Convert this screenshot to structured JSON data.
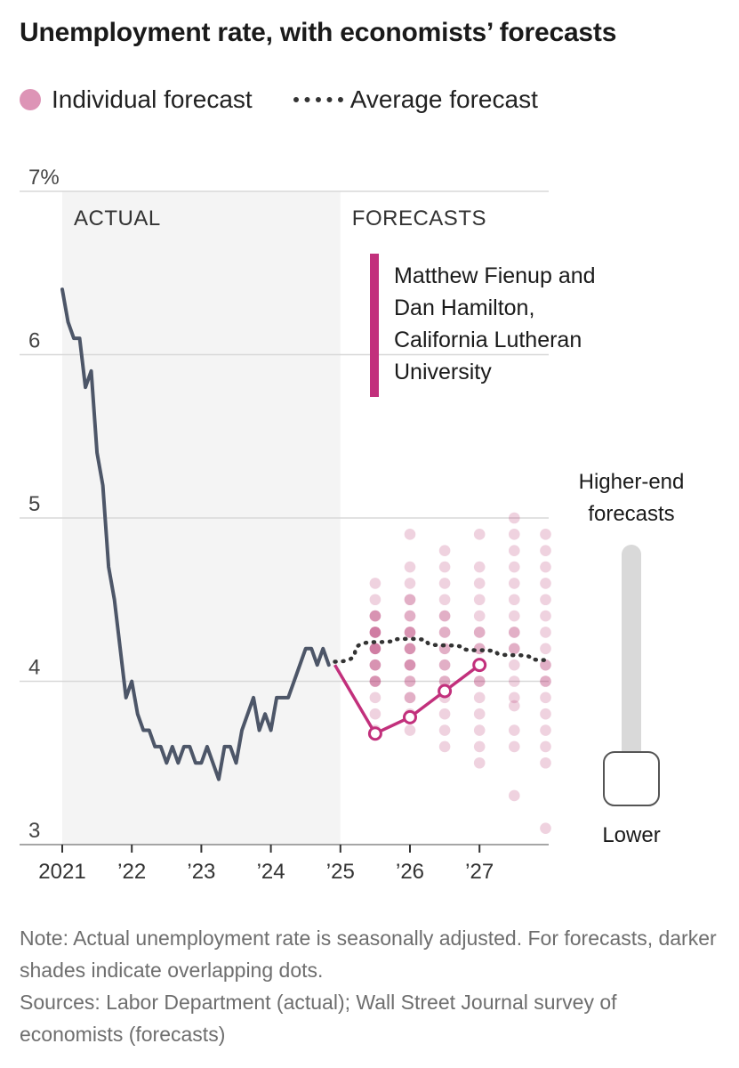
{
  "header": {
    "title": "Unemployment rate, with economists’ forecasts"
  },
  "legend": {
    "individual_label": "Individual forecast",
    "average_label": "Average forecast"
  },
  "colors": {
    "actual_line": "#4d5668",
    "highlight": "#c2307c",
    "forecast_dot": "#b5336e",
    "average_line": "#333333",
    "shade": "#f4f4f4",
    "grid": "#d8d8d8"
  },
  "chart_data": {
    "type": "line",
    "ylim": [
      3,
      7
    ],
    "xlim": [
      2021,
      2027.95
    ],
    "y_ticks": [
      {
        "value": 7,
        "label": "7%"
      },
      {
        "value": 6,
        "label": "6"
      },
      {
        "value": 5,
        "label": "5"
      },
      {
        "value": 4,
        "label": "4"
      },
      {
        "value": 3,
        "label": "3"
      }
    ],
    "x_ticks": [
      {
        "value": 2021,
        "label": "2021"
      },
      {
        "value": 2022,
        "label": "’22"
      },
      {
        "value": 2023,
        "label": "’23"
      },
      {
        "value": 2024,
        "label": "’24"
      },
      {
        "value": 2025,
        "label": "’25"
      },
      {
        "value": 2026,
        "label": "’26"
      },
      {
        "value": 2027,
        "label": "’27"
      }
    ],
    "regions": [
      {
        "label": "ACTUAL",
        "from": 2021,
        "to": 2025,
        "shaded": true
      },
      {
        "label": "FORECASTS",
        "from": 2025,
        "to": 2027.95,
        "shaded": false
      }
    ],
    "actual": {
      "start": 2021,
      "step_months": 1,
      "values": [
        6.4,
        6.2,
        6.1,
        6.1,
        5.8,
        5.9,
        5.4,
        5.2,
        4.7,
        4.5,
        4.2,
        3.9,
        4.0,
        3.8,
        3.7,
        3.7,
        3.6,
        3.6,
        3.5,
        3.6,
        3.5,
        3.6,
        3.6,
        3.5,
        3.5,
        3.6,
        3.5,
        3.4,
        3.6,
        3.6,
        3.5,
        3.7,
        3.8,
        3.9,
        3.7,
        3.8,
        3.7,
        3.9,
        3.9,
        3.9,
        4.0,
        4.1,
        4.2,
        4.2,
        4.1,
        4.2,
        4.1
      ]
    },
    "average_forecast": {
      "x": [
        2024.92,
        2025.5,
        2026.0,
        2026.5,
        2027.0,
        2027.5,
        2027.95
      ],
      "y": [
        4.12,
        4.24,
        4.26,
        4.22,
        4.19,
        4.16,
        4.13
      ]
    },
    "highlighted_forecast": {
      "label_lines": [
        "Matthew Fienup and",
        "Dan Hamilton,",
        "California Lutheran",
        "University"
      ],
      "x": [
        2024.92,
        2025.5,
        2026.0,
        2026.5,
        2027.0
      ],
      "y": [
        4.1,
        3.68,
        3.78,
        3.94,
        4.1
      ]
    },
    "forecast_dots": [
      {
        "x": 2025.5,
        "values": [
          3.9,
          4.0,
          4.0,
          4.0,
          4.1,
          4.1,
          4.1,
          4.2,
          4.2,
          4.2,
          4.2,
          4.3,
          4.3,
          4.3,
          4.3,
          4.4,
          4.4,
          4.4,
          4.5,
          4.6,
          3.7,
          3.8
        ]
      },
      {
        "x": 2026.0,
        "values": [
          3.7,
          3.8,
          3.9,
          3.9,
          4.0,
          4.0,
          4.1,
          4.1,
          4.1,
          4.2,
          4.2,
          4.2,
          4.3,
          4.3,
          4.3,
          4.4,
          4.4,
          4.5,
          4.5,
          4.6,
          4.7,
          4.9
        ]
      },
      {
        "x": 2026.5,
        "values": [
          3.6,
          3.7,
          3.8,
          3.9,
          4.0,
          4.0,
          4.1,
          4.1,
          4.2,
          4.2,
          4.3,
          4.3,
          4.4,
          4.4,
          4.5,
          4.6,
          4.7,
          4.8
        ]
      },
      {
        "x": 2027.0,
        "values": [
          3.5,
          3.6,
          3.7,
          3.8,
          3.9,
          4.0,
          4.0,
          4.1,
          4.1,
          4.2,
          4.2,
          4.3,
          4.3,
          4.4,
          4.5,
          4.6,
          4.7,
          4.9
        ]
      },
      {
        "x": 2027.5,
        "values": [
          3.3,
          3.6,
          3.7,
          3.85,
          3.9,
          4.0,
          4.1,
          4.2,
          4.2,
          4.3,
          4.3,
          4.4,
          4.5,
          4.6,
          4.7,
          4.8,
          4.9,
          5.0
        ]
      },
      {
        "x": 2027.95,
        "values": [
          3.1,
          3.5,
          3.6,
          3.7,
          3.8,
          3.9,
          4.0,
          4.0,
          4.1,
          4.1,
          4.2,
          4.3,
          4.4,
          4.5,
          4.6,
          4.7,
          4.8,
          4.9
        ]
      }
    ]
  },
  "slider": {
    "top_label_lines": [
      "Higher-end",
      "forecasts"
    ],
    "bottom_label": "Lower",
    "value": 0
  },
  "notes": {
    "note": "Note: Actual unemployment rate is seasonally adjusted. For forecasts, darker shades indicate overlapping dots.",
    "sources": "Sources: Labor Department (actual); Wall Street Journal survey of economists (forecasts)"
  }
}
